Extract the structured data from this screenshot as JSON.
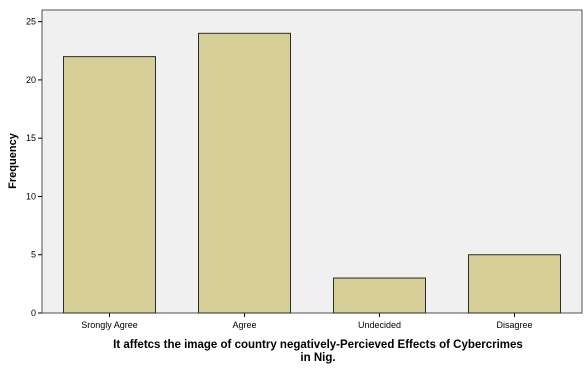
{
  "chart_data": {
    "type": "bar",
    "categories": [
      "Srongly Agree",
      "Agree",
      "Undecided",
      "Disagree"
    ],
    "values": [
      22,
      24,
      3,
      5
    ],
    "xlabel_lines": [
      "It affetcs the image of country negatively-Percieved Effects of Cybercrimes",
      "in Nig."
    ],
    "ylabel": "Frequency",
    "ylim": [
      0,
      26
    ],
    "yticks": [
      0,
      5,
      10,
      15,
      20,
      25
    ],
    "grid": false,
    "colors": {
      "bar_fill": "#d5ce96",
      "bar_stroke": "#2b2b2b",
      "plot_background": "#f0f0f0",
      "frame": "#505050"
    }
  }
}
